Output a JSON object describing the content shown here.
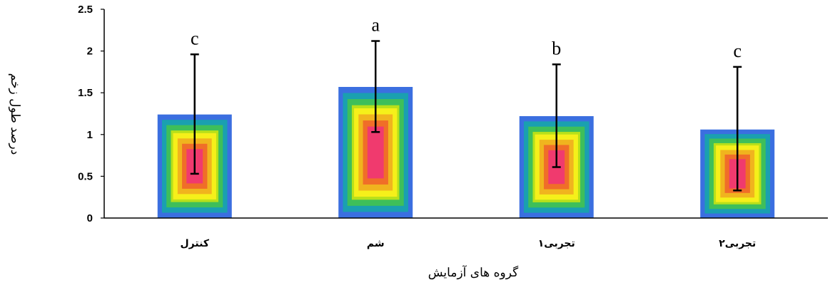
{
  "chart_data": {
    "type": "bar",
    "title": "",
    "xlabel": "گروه های آزمایش",
    "ylabel": "درصد طول زخم",
    "ylim": [
      0,
      2.5
    ],
    "yticks": [
      "0",
      "0.5",
      "1",
      "1.5",
      "2",
      "2.5"
    ],
    "categories": [
      "کنترل",
      "شم",
      "تجربی۱",
      "تجربی۲"
    ],
    "values": [
      1.24,
      1.57,
      1.22,
      1.06
    ],
    "error_low": [
      0.53,
      1.03,
      0.61,
      0.33
    ],
    "error_high": [
      1.96,
      2.12,
      1.84,
      1.81
    ],
    "significance_letters": [
      "c",
      "a",
      "b",
      "c"
    ],
    "grid": false,
    "legend": "none",
    "bar_fill": "concentric gradient",
    "colors": {
      "outer": "#3b6fe0",
      "ring2": "#1aa0b0",
      "ring3": "#3ebf5a",
      "ring4": "#b8e01a",
      "ring5": "#f5f01a",
      "ring6": "#f0b41e",
      "ring7": "#f06e28",
      "center": "#f03a6e",
      "axis": "#000000"
    }
  }
}
